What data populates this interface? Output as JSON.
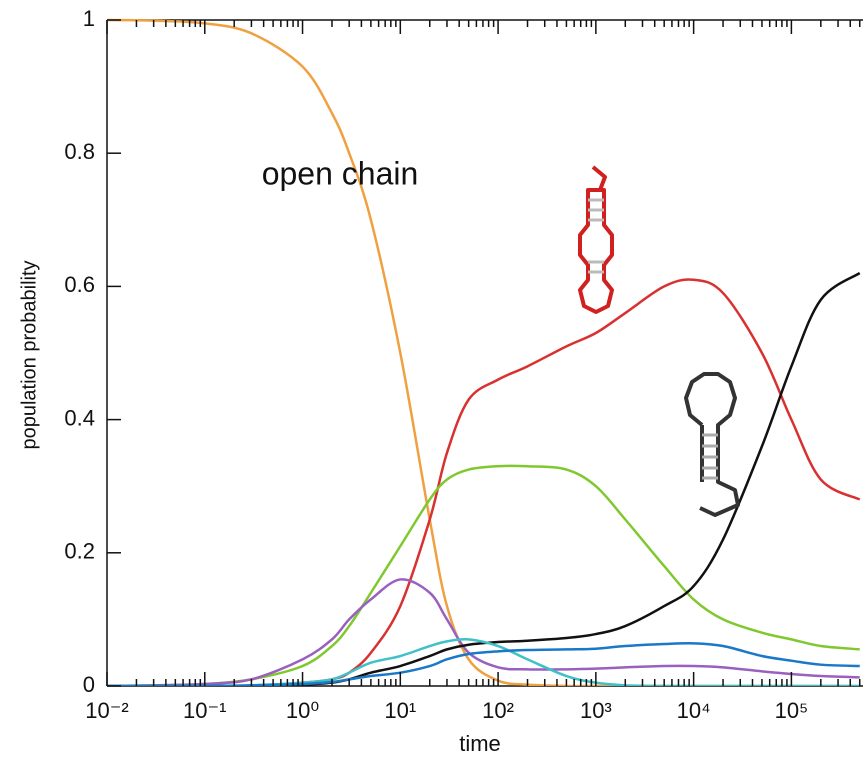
{
  "chart_data": {
    "type": "line",
    "xlabel": "time",
    "ylabel": "population probability",
    "annotation": "open chain",
    "x": [
      0.01,
      0.03,
      0.1,
      0.3,
      1,
      2,
      3,
      5,
      10,
      20,
      30,
      50,
      100,
      200,
      500,
      1000,
      2000,
      5000,
      10000,
      20000,
      50000,
      100000,
      200000,
      500000
    ],
    "series": [
      {
        "color": "#f0a040",
        "values": [
          1,
          0.999,
          0.995,
          0.98,
          0.93,
          0.86,
          0.8,
          0.7,
          0.5,
          0.25,
          0.12,
          0.04,
          0.008,
          0.002,
          0,
          0,
          0,
          0,
          0,
          0,
          0,
          0,
          0,
          0
        ]
      },
      {
        "color": "#d93030",
        "values": [
          0,
          0,
          0,
          0,
          0.005,
          0.01,
          0.02,
          0.05,
          0.12,
          0.25,
          0.35,
          0.43,
          0.46,
          0.48,
          0.51,
          0.53,
          0.56,
          0.6,
          0.61,
          0.59,
          0.5,
          0.4,
          0.31,
          0.28
        ]
      },
      {
        "color": "#80c830",
        "values": [
          0,
          0.001,
          0.003,
          0.01,
          0.03,
          0.06,
          0.09,
          0.14,
          0.21,
          0.28,
          0.31,
          0.325,
          0.33,
          0.33,
          0.325,
          0.3,
          0.25,
          0.18,
          0.13,
          0.1,
          0.08,
          0.07,
          0.06,
          0.055
        ]
      },
      {
        "color": "#9a60c0",
        "values": [
          0,
          0.001,
          0.003,
          0.01,
          0.04,
          0.07,
          0.1,
          0.13,
          0.16,
          0.14,
          0.1,
          0.05,
          0.028,
          0.025,
          0.025,
          0.026,
          0.028,
          0.03,
          0.03,
          0.028,
          0.022,
          0.018,
          0.015,
          0.013
        ]
      },
      {
        "color": "#111111",
        "values": [
          0,
          0,
          0,
          0,
          0.002,
          0.005,
          0.01,
          0.02,
          0.03,
          0.045,
          0.055,
          0.062,
          0.066,
          0.068,
          0.072,
          0.078,
          0.09,
          0.12,
          0.15,
          0.22,
          0.36,
          0.48,
          0.58,
          0.62
        ]
      },
      {
        "color": "#40c0c8",
        "values": [
          0,
          0,
          0,
          0.001,
          0.005,
          0.01,
          0.02,
          0.035,
          0.045,
          0.06,
          0.067,
          0.07,
          0.06,
          0.04,
          0.015,
          0.005,
          0.001,
          0,
          0,
          0,
          0,
          0,
          0,
          0
        ]
      },
      {
        "color": "#1a78c8",
        "values": [
          0,
          0,
          0,
          0.001,
          0.003,
          0.006,
          0.01,
          0.015,
          0.02,
          0.03,
          0.04,
          0.048,
          0.052,
          0.054,
          0.055,
          0.056,
          0.06,
          0.063,
          0.064,
          0.06,
          0.045,
          0.038,
          0.032,
          0.03
        ]
      }
    ],
    "xscale": "log",
    "xlim": [
      0.01,
      540000
    ],
    "xticks": [
      {
        "value": 0.01,
        "label": "10⁻²"
      },
      {
        "value": 0.1,
        "label": "10⁻¹"
      },
      {
        "value": 1,
        "label": "10⁰"
      },
      {
        "value": 10,
        "label": "10¹"
      },
      {
        "value": 100,
        "label": "10²"
      },
      {
        "value": 1000,
        "label": "10³"
      },
      {
        "value": 10000,
        "label": "10⁴"
      },
      {
        "value": 100000,
        "label": "10⁵"
      }
    ],
    "ylim": [
      0,
      1
    ],
    "yticks": [
      0,
      0.2,
      0.4,
      0.6,
      0.8,
      1
    ]
  }
}
